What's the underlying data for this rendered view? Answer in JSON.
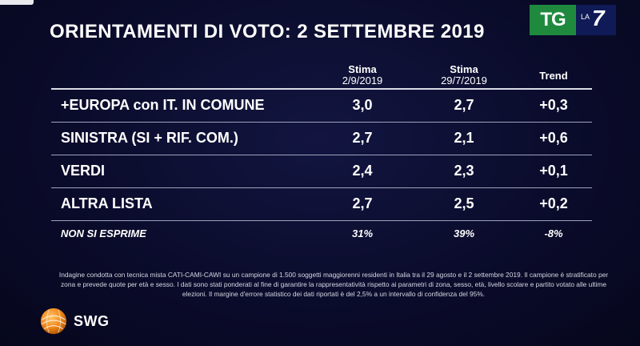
{
  "title": "ORIENTAMENTI DI VOTO: 2 SETTEMBRE 2019",
  "logo": {
    "tg": "TG",
    "la": "LA",
    "seven": "7"
  },
  "table": {
    "headers": [
      {
        "top": "Stima",
        "bottom": "2/9/2019"
      },
      {
        "top": "Stima",
        "bottom": "29/7/2019"
      },
      {
        "top": "Trend",
        "bottom": ""
      }
    ],
    "rows": [
      {
        "label": "+EUROPA con IT. IN COMUNE",
        "v1": "3,0",
        "v2": "2,7",
        "trend": "+0,3"
      },
      {
        "label": "SINISTRA (SI + RIF. COM.)",
        "v1": "2,7",
        "v2": "2,1",
        "trend": "+0,6"
      },
      {
        "label": "VERDI",
        "v1": "2,4",
        "v2": "2,3",
        "trend": "+0,1"
      },
      {
        "label": "ALTRA LISTA",
        "v1": "2,7",
        "v2": "2,5",
        "trend": "+0,2"
      }
    ],
    "footer_row": {
      "label": "NON SI ESPRIME",
      "v1": "31%",
      "v2": "39%",
      "trend": "-8%"
    }
  },
  "footnote": "Indagine condotta con tecnica mista CATI-CAMI-CAWI su un campione di 1.500 soggetti maggiorenni residenti in Italia tra il 29 agosto e il 2 settembre 2019. Il campione è stratificato per zona e prevede quote per età e sesso. I dati sono stati ponderati al fine di garantire la rappresentatività rispetto ai parametri di zona, sesso, età, livello scolare e partito votato alle ultime elezioni. Il margine d'errore statistico dei dati riportati è del 2,5% a un intervallo di confidenza del 95%.",
  "brand": {
    "name": "SWG",
    "icon": "swg-globe-icon"
  },
  "colors": {
    "background": "#0a0b2a",
    "tg_green": "#1f8a3e",
    "tg_navy": "#0f1a56",
    "globe_orange": "#f28a1c"
  }
}
